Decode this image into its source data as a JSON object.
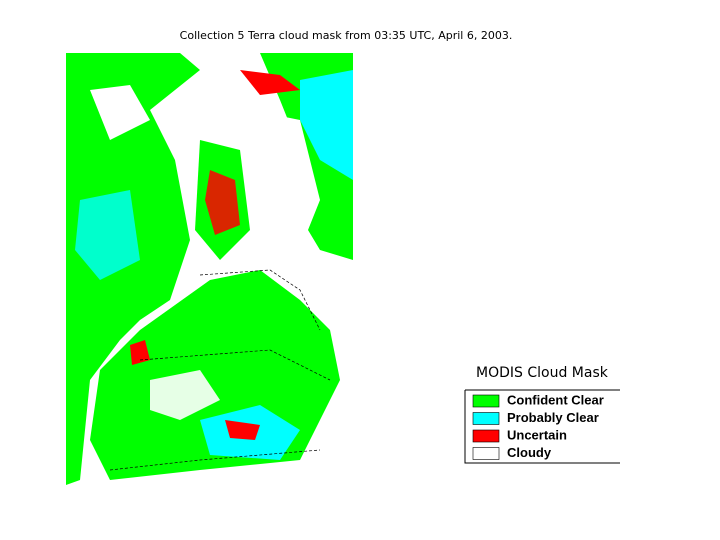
{
  "title": "Collection 5 Terra cloud mask from 03:35 UTC, April 6, 2003.",
  "legend": {
    "title": "MODIS Cloud Mask",
    "items": [
      {
        "label": "Confident Clear",
        "color": "#00ff00"
      },
      {
        "label": "Probably Clear",
        "color": "#00ffff"
      },
      {
        "label": "Uncertain",
        "color": "#ff0000"
      },
      {
        "label": "Cloudy",
        "color": "#ffffff"
      }
    ]
  }
}
